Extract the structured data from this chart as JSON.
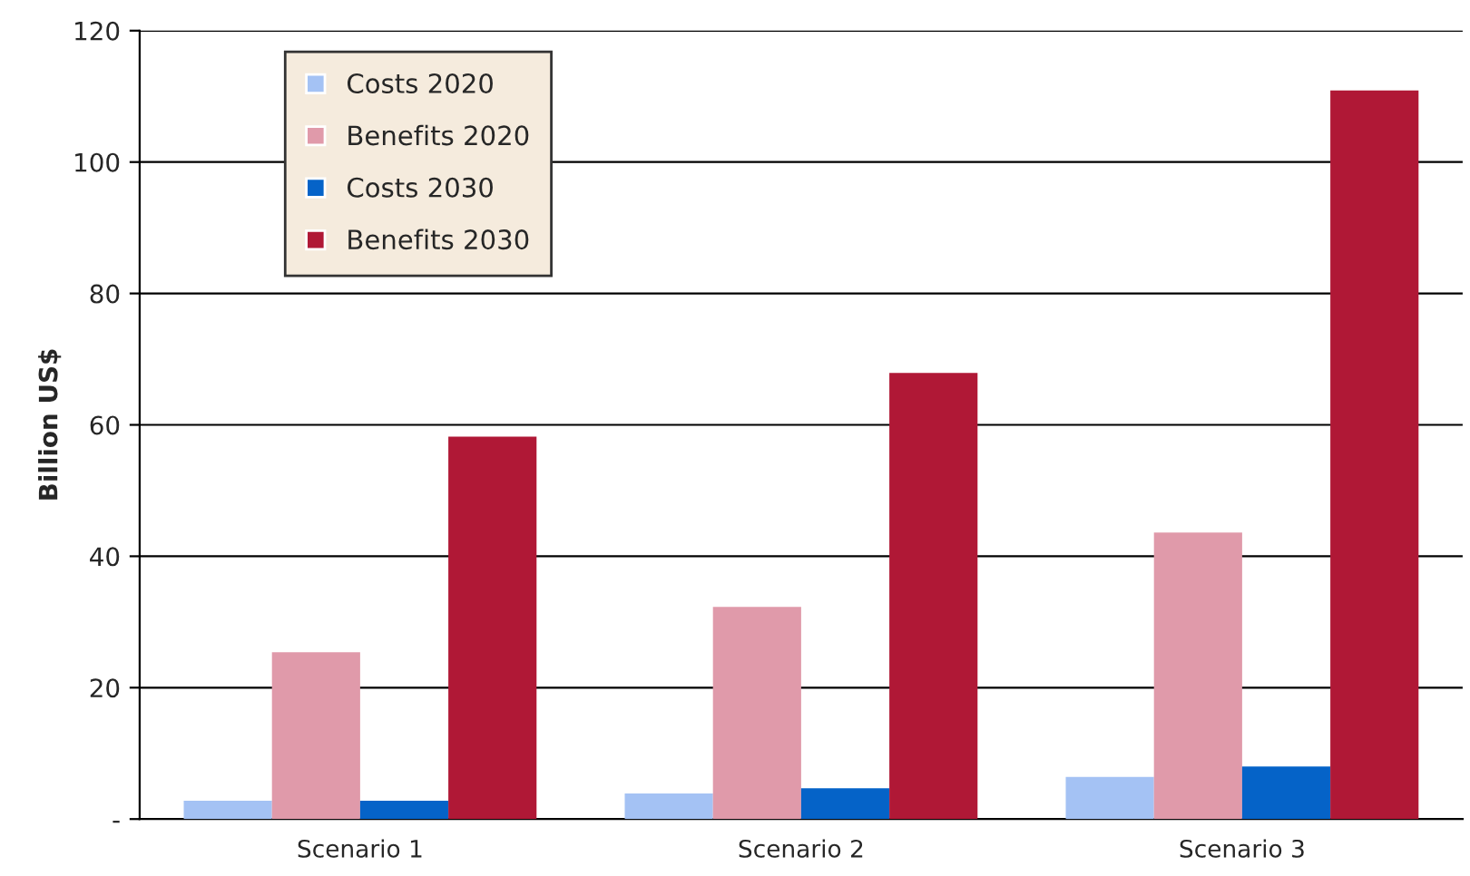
{
  "chart_data": {
    "type": "bar",
    "ylabel": "Billion US$",
    "categories": [
      "Scenario 1",
      "Scenario 2",
      "Scenario 3"
    ],
    "series": [
      {
        "name": "Costs 2020",
        "color": "#a4c2f4",
        "values": [
          2.8,
          3.9,
          6.4
        ]
      },
      {
        "name": "Benefits 2020",
        "color": "#e09aaa",
        "values": [
          25.4,
          32.3,
          43.6
        ]
      },
      {
        "name": "Costs 2030",
        "color": "#0563c8",
        "values": [
          2.8,
          4.7,
          8.0
        ]
      },
      {
        "name": "Benefits 2030",
        "color": "#b01836",
        "values": [
          58.2,
          67.9,
          110.9
        ]
      }
    ],
    "ylim": [
      0,
      120
    ],
    "yticks": [
      {
        "value": 0,
        "label": "-"
      },
      20,
      40,
      60,
      80,
      100,
      120
    ],
    "grid": "y",
    "legend": "top left"
  }
}
